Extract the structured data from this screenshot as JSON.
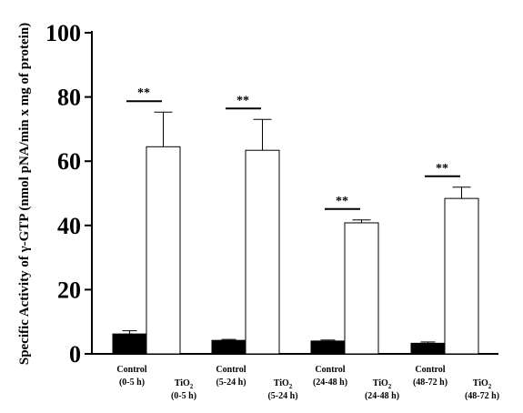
{
  "chart_data": {
    "type": "bar",
    "title": "",
    "ylabel": "Specific Activity of γ-GTP (nmol pNA/min x mg of protein)",
    "xlabel": "",
    "ylim": [
      0,
      100
    ],
    "yticks": [
      0,
      20,
      40,
      60,
      80,
      100
    ],
    "grid": false,
    "legend": "none",
    "groups": [
      {
        "control_label": [
          "Control",
          "(0-5 h)"
        ],
        "tio2_label": [
          "TiO2",
          "(0-5 h)"
        ],
        "control_value": 6.2,
        "control_error": 1.0,
        "tio2_value": 64.5,
        "tio2_error": 10.8,
        "significance": "**"
      },
      {
        "control_label": [
          "Control",
          "(5-24 h)"
        ],
        "tio2_label": [
          "TiO2",
          "(5-24 h)"
        ],
        "control_value": 4.2,
        "control_error": 0.3,
        "tio2_value": 63.4,
        "tio2_error": 9.6,
        "significance": "**"
      },
      {
        "control_label": [
          "Control",
          "(24-48 h)"
        ],
        "tio2_label": [
          "TiO2",
          "(24-48 h)"
        ],
        "control_value": 4.0,
        "control_error": 0.3,
        "tio2_value": 40.8,
        "tio2_error": 0.9,
        "significance": "**"
      },
      {
        "control_label": [
          "Control",
          "(48-72 h)"
        ],
        "tio2_label": [
          "TiO2",
          "(48-72 h)"
        ],
        "control_value": 3.3,
        "control_error": 0.4,
        "tio2_value": 48.4,
        "tio2_error": 3.5,
        "significance": "**"
      }
    ],
    "series": [
      {
        "name": "Control",
        "color": "#000000",
        "values": [
          6.2,
          4.2,
          4.0,
          3.3
        ],
        "errors": [
          1.0,
          0.3,
          0.3,
          0.4
        ]
      },
      {
        "name": "TiO2",
        "color": "#ffffff",
        "values": [
          64.5,
          63.4,
          40.8,
          48.4
        ],
        "errors": [
          10.8,
          9.6,
          0.9,
          3.5
        ]
      }
    ]
  }
}
